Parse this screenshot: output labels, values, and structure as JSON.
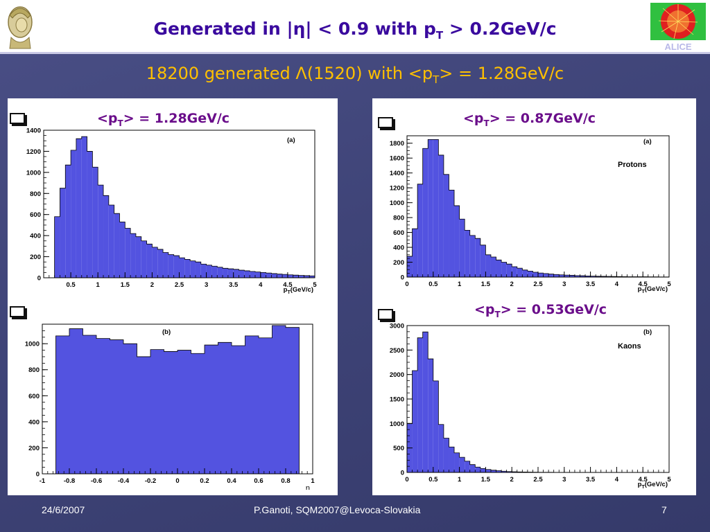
{
  "slide": {
    "title_pre": "Generated in |η| < 0.9 with p",
    "title_sub": "T",
    "title_post": " > 0.2GeV/c",
    "subtitle_pre": "18200 generated Λ(1520) with <p",
    "subtitle_sub": "T",
    "subtitle_post": "> = 1.28GeV/c",
    "footer_date": "24/6/2007",
    "footer_center": "P.Ganoti, SQM2007@Levoca-Slovakia",
    "footer_page": "7",
    "right_logo_text": "ALICE"
  },
  "labels": {
    "mean_a": {
      "pre": "<p",
      "sub": "T",
      "post": "> = 1.28GeV/c"
    },
    "mean_p": {
      "pre": "<p",
      "sub": "T",
      "post": "> = 0.87GeV/c"
    },
    "mean_k": {
      "pre": "<p",
      "sub": "T",
      "post": "> = 0.53GeV/c"
    }
  },
  "colors": {
    "fill": "#5353e0",
    "stroke": "#000000",
    "title": "#3a0a9e",
    "subtitle": "#ffc000",
    "mean": "#6a0d8a"
  },
  "chart_data": [
    {
      "type": "bar",
      "id": "lambda_pt",
      "panel_label": "(a)",
      "xlabel": "p_T(GeV/c)",
      "xlim": [
        0,
        5
      ],
      "ylim": [
        0,
        1400
      ],
      "xticks": [
        "0.5",
        "1",
        "1.5",
        "2",
        "2.5",
        "3",
        "3.5",
        "4",
        "4.5",
        "5"
      ],
      "xtick_values": [
        0.5,
        1,
        1.5,
        2,
        2.5,
        3,
        3.5,
        4,
        4.5,
        5
      ],
      "yticks": [
        0,
        200,
        400,
        600,
        800,
        1000,
        1200,
        1400
      ],
      "bin_width": 0.1,
      "bin_start": 0.2,
      "values": [
        580,
        850,
        1070,
        1210,
        1320,
        1340,
        1200,
        1050,
        880,
        780,
        690,
        610,
        530,
        470,
        420,
        390,
        350,
        320,
        290,
        270,
        240,
        220,
        210,
        190,
        175,
        160,
        150,
        130,
        120,
        110,
        100,
        90,
        85,
        80,
        72,
        66,
        60,
        55,
        50,
        45,
        40,
        35,
        32,
        28,
        25,
        22,
        20,
        18
      ]
    },
    {
      "type": "bar",
      "id": "lambda_eta",
      "panel_label": "(b)",
      "xlabel": "η",
      "xlim": [
        -1,
        1
      ],
      "ylim": [
        0,
        1150
      ],
      "xticks": [
        "-1",
        "-0.8",
        "-0.6",
        "-0.4",
        "-0.2",
        "0",
        "0.2",
        "0.4",
        "0.6",
        "0.8",
        "1"
      ],
      "xtick_values": [
        -1,
        -0.8,
        -0.6,
        -0.4,
        -0.2,
        0,
        0.2,
        0.4,
        0.6,
        0.8,
        1
      ],
      "yticks": [
        0,
        200,
        400,
        600,
        800,
        1000
      ],
      "bin_width": 0.1,
      "bin_start": -0.9,
      "values": [
        1060,
        1115,
        1065,
        1040,
        1030,
        1000,
        900,
        955,
        940,
        950,
        925,
        990,
        1010,
        985,
        1060,
        1045,
        1140,
        1125
      ]
    },
    {
      "type": "bar",
      "id": "proton_pt",
      "panel_label": "(a)",
      "series_label": "Protons",
      "xlabel": "p_T(GeV/c)",
      "xlim": [
        0,
        5
      ],
      "ylim": [
        0,
        1900
      ],
      "xticks": [
        "0",
        "0.5",
        "1",
        "1.5",
        "2",
        "2.5",
        "3",
        "3.5",
        "4",
        "4.5",
        "5"
      ],
      "xtick_values": [
        0,
        0.5,
        1,
        1.5,
        2,
        2.5,
        3,
        3.5,
        4,
        4.5,
        5
      ],
      "yticks": [
        0,
        200,
        400,
        600,
        800,
        1000,
        1200,
        1400,
        1600,
        1800
      ],
      "bin_width": 0.1,
      "bin_start": 0,
      "values": [
        280,
        650,
        1250,
        1730,
        1850,
        1850,
        1640,
        1380,
        1170,
        960,
        780,
        630,
        560,
        520,
        430,
        300,
        270,
        230,
        200,
        175,
        140,
        120,
        95,
        80,
        65,
        55,
        48,
        40,
        35,
        30,
        27,
        24,
        20,
        18,
        15,
        13,
        11,
        10,
        9,
        8,
        7,
        6,
        5,
        5,
        4,
        4,
        3,
        3,
        2,
        2
      ]
    },
    {
      "type": "bar",
      "id": "kaon_pt",
      "panel_label": "(b)",
      "series_label": "Kaons",
      "xlabel": "p_T(GeV/c)",
      "xlim": [
        0,
        5
      ],
      "ylim": [
        0,
        3000
      ],
      "xticks": [
        "0",
        "0.5",
        "1",
        "1.5",
        "2",
        "2.5",
        "3",
        "3.5",
        "4",
        "4.5",
        "5"
      ],
      "xtick_values": [
        0,
        0.5,
        1,
        1.5,
        2,
        2.5,
        3,
        3.5,
        4,
        4.5,
        5
      ],
      "yticks": [
        0,
        500,
        1000,
        1500,
        2000,
        2500,
        3000
      ],
      "bin_width": 0.1,
      "bin_start": 0,
      "values": [
        1000,
        2080,
        2750,
        2870,
        2320,
        1870,
        980,
        700,
        520,
        400,
        310,
        230,
        160,
        110,
        80,
        60,
        45,
        35,
        25,
        18,
        14,
        10,
        8,
        6,
        5,
        4,
        3,
        3,
        2,
        2,
        2,
        1,
        1,
        1,
        1,
        1,
        1,
        0,
        0,
        0,
        0,
        0,
        0,
        0,
        0,
        0,
        0,
        0,
        0,
        0
      ]
    }
  ]
}
